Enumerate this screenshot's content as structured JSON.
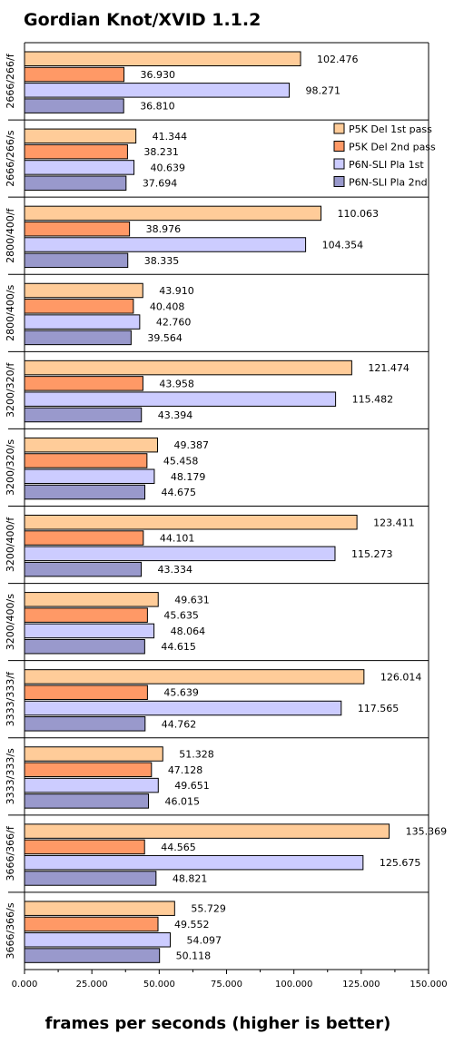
{
  "chart_data": {
    "type": "bar",
    "orientation": "horizontal",
    "title": "Gordian Knot/XVID 1.1.2",
    "xlabel": "frames per seconds (higher is better)",
    "ylabel": "",
    "xlim": [
      0,
      150
    ],
    "x_ticks": [
      0,
      25,
      50,
      75,
      100,
      125,
      150
    ],
    "x_tick_labels": [
      "0.000",
      "25.000",
      "50.000",
      "75.000",
      "100.000",
      "125.000",
      "150.000"
    ],
    "grid": false,
    "legend_position": "top-right",
    "categories": [
      "2666/266/f",
      "2666/266/s",
      "2800/400/f",
      "2800/400/s",
      "3200/320/f",
      "3200/320/s",
      "3200/400/f",
      "3200/400/s",
      "3333/333/f",
      "3333/333/s",
      "3666/366/f",
      "3666/366/s"
    ],
    "series": [
      {
        "name": "P5K Del 1st pass",
        "color": "#ffcc99",
        "values": [
          102.476,
          41.344,
          110.063,
          43.91,
          121.474,
          49.387,
          123.411,
          49.631,
          126.014,
          51.328,
          135.369,
          55.729
        ]
      },
      {
        "name": "P5K Del 2nd pass",
        "color": "#ff9966",
        "values": [
          36.93,
          38.231,
          38.976,
          40.408,
          43.958,
          45.458,
          44.101,
          45.635,
          45.639,
          47.128,
          44.565,
          49.552
        ]
      },
      {
        "name": "P6N-SLI Pla 1st",
        "color": "#ccccff",
        "values": [
          98.271,
          40.639,
          104.354,
          42.76,
          115.482,
          48.179,
          115.273,
          48.064,
          117.565,
          49.651,
          125.675,
          54.097
        ]
      },
      {
        "name": "P6N-SLI Pla 2nd",
        "color": "#9999cc",
        "values": [
          36.81,
          37.694,
          38.335,
          39.564,
          43.394,
          44.675,
          43.334,
          44.615,
          44.762,
          46.015,
          48.821,
          50.118
        ]
      }
    ],
    "value_labels": [
      [
        "102.476",
        "36.930",
        "98.271",
        "36.810"
      ],
      [
        "41.344",
        "38.231",
        "40.639",
        "37.694"
      ],
      [
        "110.063",
        "38.976",
        "104.354",
        "38.335"
      ],
      [
        "43.910",
        "40.408",
        "42.760",
        "39.564"
      ],
      [
        "121.474",
        "43.958",
        "115.482",
        "43.394"
      ],
      [
        "49.387",
        "45.458",
        "48.179",
        "44.675"
      ],
      [
        "123.411",
        "44.101",
        "115.273",
        "43.334"
      ],
      [
        "49.631",
        "45.635",
        "48.064",
        "44.615"
      ],
      [
        "126.014",
        "45.639",
        "117.565",
        "44.762"
      ],
      [
        "51.328",
        "47.128",
        "49.651",
        "46.015"
      ],
      [
        "135.369",
        "44.565",
        "125.675",
        "48.821"
      ],
      [
        "55.729",
        "49.552",
        "54.097",
        "50.118"
      ]
    ]
  }
}
